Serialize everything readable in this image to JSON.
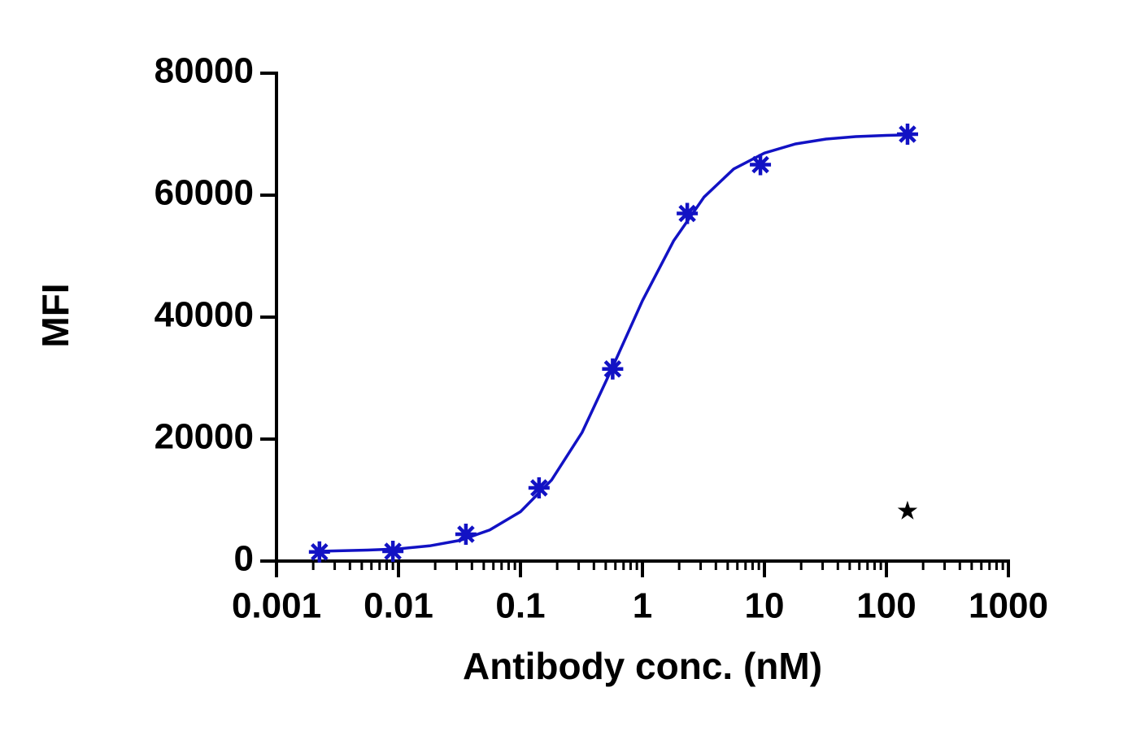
{
  "chart_data": {
    "type": "scatter",
    "x_label": "Antibody conc. (nM)",
    "y_label": "MFI",
    "xscale": "log",
    "xlim": [
      0.001,
      1000
    ],
    "xticks": [
      0.001,
      0.01,
      0.1,
      1,
      10,
      100,
      1000
    ],
    "ylim": [
      0,
      80000
    ],
    "yticks": [
      0,
      20000,
      40000,
      60000,
      80000
    ],
    "series": [
      {
        "color": "#1212c4",
        "x": [
          0.00225,
          0.009,
          0.0357,
          0.142,
          0.57,
          2.33,
          9.27,
          149
        ],
        "values": [
          1500,
          1600,
          4400,
          12000,
          31500,
          57000,
          65000,
          70000
        ]
      }
    ],
    "fit": {
      "color": "#1212c4",
      "x": [
        0.0022,
        0.0056,
        0.01,
        0.018,
        0.032,
        0.056,
        0.1,
        0.18,
        0.32,
        0.56,
        1,
        1.8,
        3.2,
        5.6,
        10,
        18,
        32,
        56,
        100,
        160
      ],
      "values": [
        1600,
        1800,
        2000,
        2500,
        3400,
        5100,
        8100,
        13300,
        21100,
        31500,
        42700,
        52500,
        59700,
        64300,
        66900,
        68400,
        69200,
        69600,
        69800,
        69900
      ]
    },
    "annotation": {
      "text": "★",
      "x": 149,
      "y": 8000
    }
  }
}
